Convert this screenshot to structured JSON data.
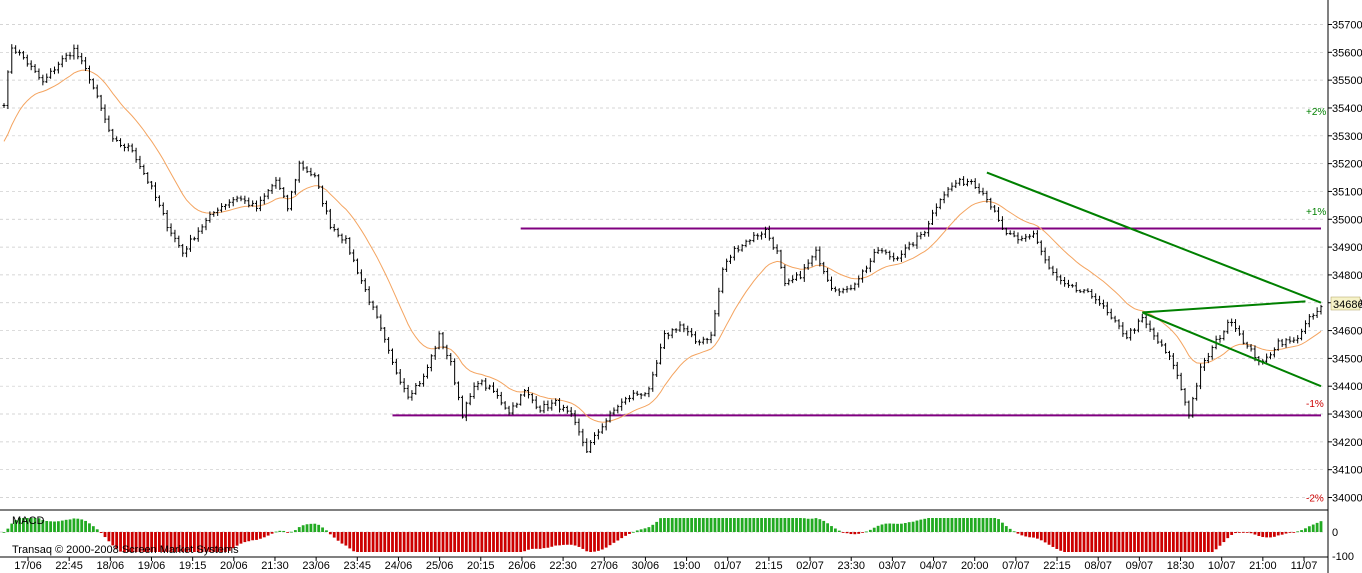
{
  "chart_data": [
    {
      "type": "candlestick",
      "panel": "price",
      "ylim": [
        34000,
        35750
      ],
      "y_ticks": [
        34000,
        34100,
        34200,
        34300,
        34400,
        34500,
        34600,
        34700,
        34800,
        34900,
        35000,
        35100,
        35200,
        35300,
        35400,
        35500,
        35600,
        35700
      ],
      "current_price": "34686",
      "grid": true,
      "series": [
        {
          "type": "line",
          "role": "price",
          "color": "#000000",
          "anchors": [
            [
              0,
              35420
            ],
            [
              2,
              35620
            ],
            [
              5,
              35580
            ],
            [
              10,
              35490
            ],
            [
              14,
              35560
            ],
            [
              18,
              35610
            ],
            [
              22,
              35510
            ],
            [
              28,
              35280
            ],
            [
              33,
              35250
            ],
            [
              38,
              35110
            ],
            [
              42,
              34980
            ],
            [
              46,
              34880
            ],
            [
              50,
              34960
            ],
            [
              55,
              35040
            ],
            [
              60,
              35080
            ],
            [
              65,
              35040
            ],
            [
              70,
              35140
            ],
            [
              73,
              35040
            ],
            [
              76,
              35200
            ],
            [
              80,
              35150
            ],
            [
              84,
              34980
            ],
            [
              88,
              34920
            ],
            [
              92,
              34780
            ],
            [
              96,
              34640
            ],
            [
              100,
              34480
            ],
            [
              104,
              34370
            ],
            [
              108,
              34430
            ],
            [
              112,
              34580
            ],
            [
              115,
              34480
            ],
            [
              118,
              34300
            ],
            [
              122,
              34420
            ],
            [
              126,
              34380
            ],
            [
              130,
              34310
            ],
            [
              134,
              34380
            ],
            [
              138,
              34320
            ],
            [
              142,
              34340
            ],
            [
              146,
              34290
            ],
            [
              150,
              34170
            ],
            [
              154,
              34260
            ],
            [
              158,
              34330
            ],
            [
              162,
              34370
            ],
            [
              166,
              34380
            ],
            [
              170,
              34580
            ],
            [
              174,
              34620
            ],
            [
              178,
              34560
            ],
            [
              182,
              34580
            ],
            [
              185,
              34820
            ],
            [
              188,
              34890
            ],
            [
              192,
              34930
            ],
            [
              196,
              34960
            ],
            [
              199,
              34880
            ],
            [
              201,
              34760
            ],
            [
              205,
              34800
            ],
            [
              209,
              34880
            ],
            [
              213,
              34760
            ],
            [
              217,
              34740
            ],
            [
              221,
              34810
            ],
            [
              225,
              34890
            ],
            [
              229,
              34860
            ],
            [
              233,
              34900
            ],
            [
              237,
              34960
            ],
            [
              241,
              35080
            ],
            [
              245,
              35130
            ],
            [
              249,
              35140
            ],
            [
              253,
              35080
            ],
            [
              257,
              34960
            ],
            [
              261,
              34920
            ],
            [
              265,
              34950
            ],
            [
              269,
              34820
            ],
            [
              273,
              34760
            ],
            [
              277,
              34740
            ],
            [
              281,
              34720
            ],
            [
              285,
              34640
            ],
            [
              289,
              34580
            ],
            [
              293,
              34640
            ],
            [
              297,
              34560
            ],
            [
              301,
              34480
            ],
            [
              305,
              34300
            ],
            [
              308,
              34460
            ],
            [
              312,
              34560
            ],
            [
              316,
              34640
            ],
            [
              320,
              34540
            ],
            [
              324,
              34480
            ],
            [
              328,
              34560
            ],
            [
              332,
              34560
            ],
            [
              336,
              34640
            ],
            [
              339,
              34680
            ]
          ]
        },
        {
          "type": "line",
          "role": "moving-average",
          "color": "#f4a460"
        }
      ],
      "annotations": [
        {
          "kind": "hline",
          "color": "#800080",
          "y": 34295,
          "x_start": 100,
          "x_end": 339
        },
        {
          "kind": "hline",
          "color": "#800080",
          "y": 34967,
          "x_start": 133,
          "x_end": 339
        },
        {
          "kind": "trendline",
          "color": "#008000",
          "from": [
            253,
            35168
          ],
          "to": [
            339,
            34700
          ]
        },
        {
          "kind": "trendline",
          "color": "#008000",
          "from": [
            293,
            34665
          ],
          "to": [
            339,
            34400
          ]
        },
        {
          "kind": "trendline",
          "color": "#008000",
          "from": [
            293,
            34665
          ],
          "to": [
            335,
            34705
          ]
        }
      ],
      "pct_labels": [
        {
          "text": "+2%",
          "y": 35390,
          "color": "#008000"
        },
        {
          "text": "+1%",
          "y": 35030,
          "color": "#008000"
        },
        {
          "text": "-1%",
          "y": 34340,
          "color": "#cc0000"
        },
        {
          "text": "-2%",
          "y": 34000,
          "color": "#cc0000"
        }
      ],
      "x_ticks": [
        "17/06",
        "22:45",
        "18/06",
        "19/06",
        "19:15",
        "20/06",
        "21:30",
        "23/06",
        "23:45",
        "24/06",
        "25/06",
        "20:15",
        "26/06",
        "22:30",
        "27/06",
        "30/06",
        "19:00",
        "01/07",
        "21:15",
        "02/07",
        "23:30",
        "03/07",
        "04/07",
        "20:00",
        "07/07",
        "22:15",
        "08/07",
        "09/07",
        "18:30",
        "10/07",
        "21:00",
        "11/07"
      ]
    },
    {
      "type": "bar",
      "panel": "indicator",
      "title": "MACD",
      "y_ticks": [
        "0",
        "-100"
      ],
      "positive_color": "#22aa22",
      "negative_color": "#cc0000"
    }
  ],
  "footer": {
    "copyright": "Transaq © 2000-2008 Screen Market Systems"
  }
}
